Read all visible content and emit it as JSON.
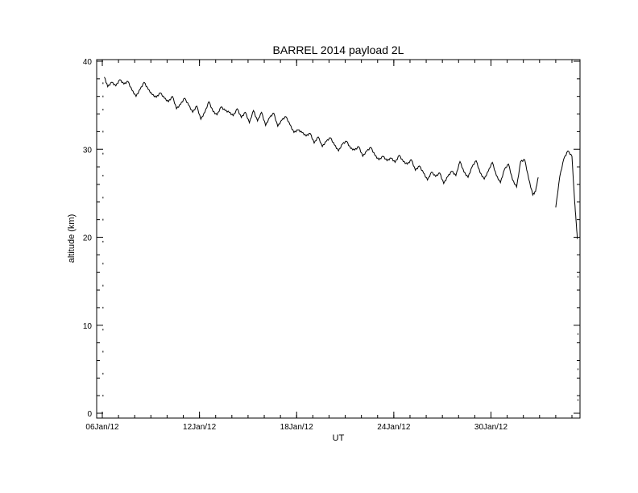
{
  "chart_data": {
    "type": "line",
    "title": "BARREL 2014 payload 2L",
    "xlabel": "UT",
    "ylabel": "altitude (km)",
    "x_units": "days",
    "xlim": [
      "2012-01-06",
      "2012-02-04"
    ],
    "ylim": [
      0,
      40
    ],
    "x_ticks": [
      {
        "x": "2012-01-06",
        "label": "06Jan/12"
      },
      {
        "x": "2012-01-12",
        "label": "12Jan/12"
      },
      {
        "x": "2012-01-18",
        "label": "18Jan/12"
      },
      {
        "x": "2012-01-24",
        "label": "24Jan/12"
      },
      {
        "x": "2012-01-30",
        "label": "30Jan/12"
      }
    ],
    "y_ticks": [
      {
        "y": 0,
        "label": "0"
      },
      {
        "y": 10,
        "label": "10"
      },
      {
        "y": 20,
        "label": "20"
      },
      {
        "y": 30,
        "label": "30"
      },
      {
        "y": 40,
        "label": "40"
      }
    ],
    "grid": false,
    "legend": "none",
    "line_color": "#000000",
    "series": [
      {
        "segments": [
          [
            [
              "2012-01-06 03:00",
              38.2
            ],
            [
              "2012-01-06 08:00",
              37.1
            ],
            [
              "2012-01-06 14:00",
              37.6
            ],
            [
              "2012-01-06 20:00",
              37.2
            ],
            [
              "2012-01-07 02:00",
              37.9
            ],
            [
              "2012-01-07 08:00",
              37.4
            ],
            [
              "2012-01-07 14:00",
              37.7
            ],
            [
              "2012-01-07 20:00",
              36.7
            ],
            [
              "2012-01-08 02:00",
              36.0
            ],
            [
              "2012-01-08 08:00",
              36.8
            ],
            [
              "2012-01-08 14:00",
              37.6
            ],
            [
              "2012-01-08 20:00",
              36.8
            ],
            [
              "2012-01-09 02:00",
              36.2
            ],
            [
              "2012-01-09 08:00",
              35.9
            ],
            [
              "2012-01-09 14:00",
              36.4
            ],
            [
              "2012-01-09 20:00",
              35.8
            ],
            [
              "2012-01-10 02:00",
              35.4
            ],
            [
              "2012-01-10 08:00",
              36.0
            ],
            [
              "2012-01-10 14:00",
              34.6
            ],
            [
              "2012-01-10 20:00",
              35.1
            ],
            [
              "2012-01-11 02:00",
              35.8
            ],
            [
              "2012-01-11 08:00",
              35.0
            ],
            [
              "2012-01-11 14:00",
              34.2
            ],
            [
              "2012-01-11 20:00",
              34.9
            ],
            [
              "2012-01-12 02:00",
              33.4
            ],
            [
              "2012-01-12 08:00",
              34.2
            ],
            [
              "2012-01-12 14:00",
              35.4
            ],
            [
              "2012-01-12 20:00",
              34.3
            ],
            [
              "2012-01-13 02:00",
              33.9
            ],
            [
              "2012-01-13 08:00",
              34.8
            ],
            [
              "2012-01-13 14:00",
              34.4
            ],
            [
              "2012-01-13 20:00",
              34.2
            ],
            [
              "2012-01-14 02:00",
              33.8
            ],
            [
              "2012-01-14 08:00",
              34.6
            ],
            [
              "2012-01-14 14:00",
              33.6
            ],
            [
              "2012-01-14 20:00",
              34.2
            ],
            [
              "2012-01-15 02:00",
              33.0
            ],
            [
              "2012-01-15 08:00",
              34.4
            ],
            [
              "2012-01-15 14:00",
              33.2
            ],
            [
              "2012-01-15 20:00",
              34.2
            ],
            [
              "2012-01-16 02:00",
              32.7
            ],
            [
              "2012-01-16 08:00",
              33.6
            ],
            [
              "2012-01-16 14:00",
              34.1
            ],
            [
              "2012-01-16 20:00",
              32.6
            ],
            [
              "2012-01-17 02:00",
              33.3
            ],
            [
              "2012-01-17 08:00",
              33.7
            ],
            [
              "2012-01-17 14:00",
              32.8
            ],
            [
              "2012-01-17 20:00",
              31.9
            ],
            [
              "2012-01-18 02:00",
              32.2
            ],
            [
              "2012-01-18 08:00",
              31.9
            ],
            [
              "2012-01-18 14:00",
              31.5
            ],
            [
              "2012-01-18 20:00",
              31.8
            ],
            [
              "2012-01-19 02:00",
              30.7
            ],
            [
              "2012-01-19 08:00",
              31.4
            ],
            [
              "2012-01-19 14:00",
              30.3
            ],
            [
              "2012-01-19 20:00",
              30.9
            ],
            [
              "2012-01-20 02:00",
              31.3
            ],
            [
              "2012-01-20 08:00",
              30.5
            ],
            [
              "2012-01-20 14:00",
              29.8
            ],
            [
              "2012-01-20 20:00",
              30.6
            ],
            [
              "2012-01-21 02:00",
              30.9
            ],
            [
              "2012-01-21 08:00",
              30.1
            ],
            [
              "2012-01-21 14:00",
              29.9
            ],
            [
              "2012-01-21 20:00",
              30.3
            ],
            [
              "2012-01-22 02:00",
              29.2
            ],
            [
              "2012-01-22 08:00",
              29.8
            ],
            [
              "2012-01-22 14:00",
              30.2
            ],
            [
              "2012-01-22 20:00",
              29.3
            ],
            [
              "2012-01-23 02:00",
              28.8
            ],
            [
              "2012-01-23 08:00",
              29.2
            ],
            [
              "2012-01-23 14:00",
              28.7
            ],
            [
              "2012-01-23 20:00",
              29.0
            ],
            [
              "2012-01-24 02:00",
              28.5
            ],
            [
              "2012-01-24 08:00",
              29.3
            ],
            [
              "2012-01-24 14:00",
              28.6
            ],
            [
              "2012-01-24 20:00",
              28.3
            ],
            [
              "2012-01-25 02:00",
              28.8
            ],
            [
              "2012-01-25 08:00",
              27.6
            ],
            [
              "2012-01-25 14:00",
              28.1
            ],
            [
              "2012-01-25 20:00",
              27.3
            ],
            [
              "2012-01-26 02:00",
              26.5
            ],
            [
              "2012-01-26 08:00",
              27.4
            ],
            [
              "2012-01-26 14:00",
              26.9
            ],
            [
              "2012-01-26 20:00",
              27.3
            ],
            [
              "2012-01-27 02:00",
              26.1
            ],
            [
              "2012-01-27 08:00",
              26.9
            ],
            [
              "2012-01-27 14:00",
              27.5
            ],
            [
              "2012-01-27 20:00",
              27.0
            ],
            [
              "2012-01-28 02:00",
              28.6
            ],
            [
              "2012-01-28 08:00",
              27.4
            ],
            [
              "2012-01-28 14:00",
              26.8
            ],
            [
              "2012-01-28 20:00",
              28.0
            ],
            [
              "2012-01-29 02:00",
              28.7
            ],
            [
              "2012-01-29 08:00",
              27.3
            ],
            [
              "2012-01-29 14:00",
              26.6
            ],
            [
              "2012-01-29 20:00",
              27.5
            ],
            [
              "2012-01-30 02:00",
              28.5
            ],
            [
              "2012-01-30 08:00",
              27.0
            ],
            [
              "2012-01-30 14:00",
              26.2
            ],
            [
              "2012-01-30 20:00",
              27.7
            ],
            [
              "2012-01-31 02:00",
              28.3
            ],
            [
              "2012-01-31 08:00",
              26.5
            ],
            [
              "2012-01-31 14:00",
              25.7
            ],
            [
              "2012-01-31 20:00",
              28.6
            ],
            [
              "2012-02-01 02:00",
              28.8
            ],
            [
              "2012-02-01 08:00",
              26.6
            ],
            [
              "2012-02-01 14:00",
              24.8
            ],
            [
              "2012-02-01 18:00",
              25.2
            ],
            [
              "2012-02-01 22:00",
              26.8
            ]
          ],
          [
            [
              "2012-02-03 00:00",
              23.4
            ],
            [
              "2012-02-03 06:00",
              26.9
            ],
            [
              "2012-02-03 12:00",
              28.9
            ],
            [
              "2012-02-03 18:00",
              29.8
            ],
            [
              "2012-02-04 00:00",
              29.2
            ],
            [
              "2012-02-04 04:00",
              24.0
            ],
            [
              "2012-02-04 06:00",
              22.0
            ],
            [
              "2012-02-04 08:00",
              19.8
            ]
          ]
        ]
      }
    ],
    "dotted_points": [
      [
        "2012-01-06 01:00",
        37.5
      ],
      [
        "2012-01-06 01:00",
        36.0
      ],
      [
        "2012-01-06 01:00",
        34.5
      ],
      [
        "2012-01-06 01:00",
        32.0
      ],
      [
        "2012-01-06 01:00",
        29.5
      ],
      [
        "2012-01-06 01:00",
        27.0
      ],
      [
        "2012-01-06 01:00",
        24.5
      ],
      [
        "2012-01-06 01:00",
        22.0
      ],
      [
        "2012-01-06 01:00",
        19.5
      ],
      [
        "2012-01-06 01:00",
        17.0
      ],
      [
        "2012-01-06 01:00",
        14.5
      ],
      [
        "2012-01-06 01:00",
        12.0
      ],
      [
        "2012-01-06 01:00",
        9.5
      ],
      [
        "2012-01-06 01:00",
        7.0
      ],
      [
        "2012-01-06 01:00",
        4.5
      ],
      [
        "2012-01-06 01:00",
        2.0
      ],
      [
        "2012-02-04 09:00",
        15.5
      ],
      [
        "2012-02-04 09:00",
        9.0
      ],
      [
        "2012-02-04 09:00",
        5.0
      ],
      [
        "2012-02-04 09:00",
        1.5
      ]
    ]
  }
}
